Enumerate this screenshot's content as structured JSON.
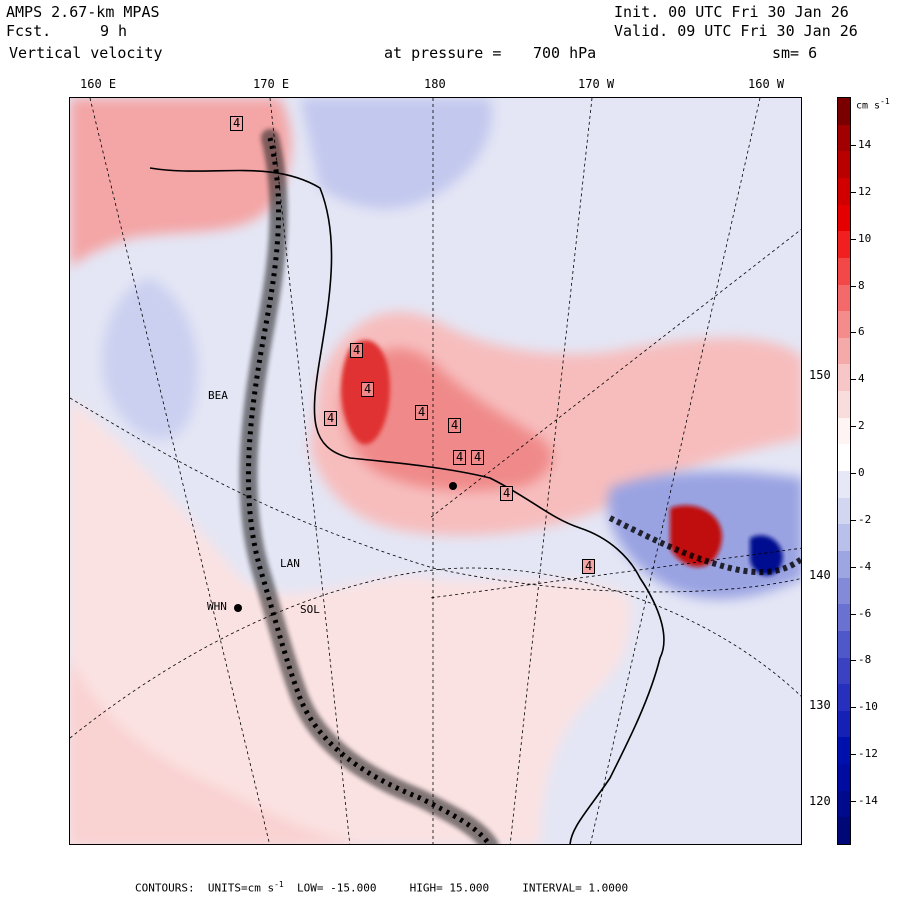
{
  "header": {
    "model": "AMPS 2.67-km MPAS",
    "fcst_label": "Fcst.",
    "fcst_value": "9 h",
    "field": "Vertical velocity",
    "init": "Init. 00 UTC Fri 30 Jan 26",
    "valid": "Valid. 09 UTC Fri 30 Jan 26",
    "pressure_label": "at pressure =",
    "pressure_value": "700 hPa",
    "smoothing": "sm= 6"
  },
  "top_longitude_labels": [
    "160 E",
    "170 E",
    "180",
    "170 W",
    "160 W"
  ],
  "right_longitude_labels": [
    "150 W",
    "140 W",
    "130 W",
    "120 W"
  ],
  "station_labels": [
    "BEA",
    "LAN",
    "WHN",
    "SOL"
  ],
  "contour_box_labels": [
    "4",
    "4",
    "4",
    "4",
    "4",
    "4",
    "4",
    "4",
    "4",
    "4"
  ],
  "colorbar": {
    "units": "cm s",
    "units_exp": "-1",
    "labels": [
      "14",
      "12",
      "10",
      "8",
      "6",
      "4",
      "2",
      "0",
      "-2",
      "-4",
      "-6",
      "-8",
      "-10",
      "-12",
      "-14"
    ],
    "colors": [
      "#7a0000",
      "#a00000",
      "#b80000",
      "#d00000",
      "#e40000",
      "#f02020",
      "#f24848",
      "#f46a6a",
      "#f48c8c",
      "#f5aaaa",
      "#f7c6c6",
      "#f9dcdc",
      "#fff4f4",
      "#ffffff",
      "#e6e8f7",
      "#d2d6f1",
      "#b9c0ea",
      "#9ea6e2",
      "#838bd9",
      "#6a72d1",
      "#4f58c8",
      "#3a42c2",
      "#2630bd",
      "#1520b5",
      "#0010ad",
      "#000ca0",
      "#000a8c",
      "#000878"
    ]
  },
  "footer": {
    "contours": "CONTOURS:",
    "units_label": "UNITS=cm s",
    "units_exp": "-1",
    "low": "LOW= -15.000",
    "high": "HIGH= 15.000",
    "interval": "INTERVAL= 1.0000"
  }
}
